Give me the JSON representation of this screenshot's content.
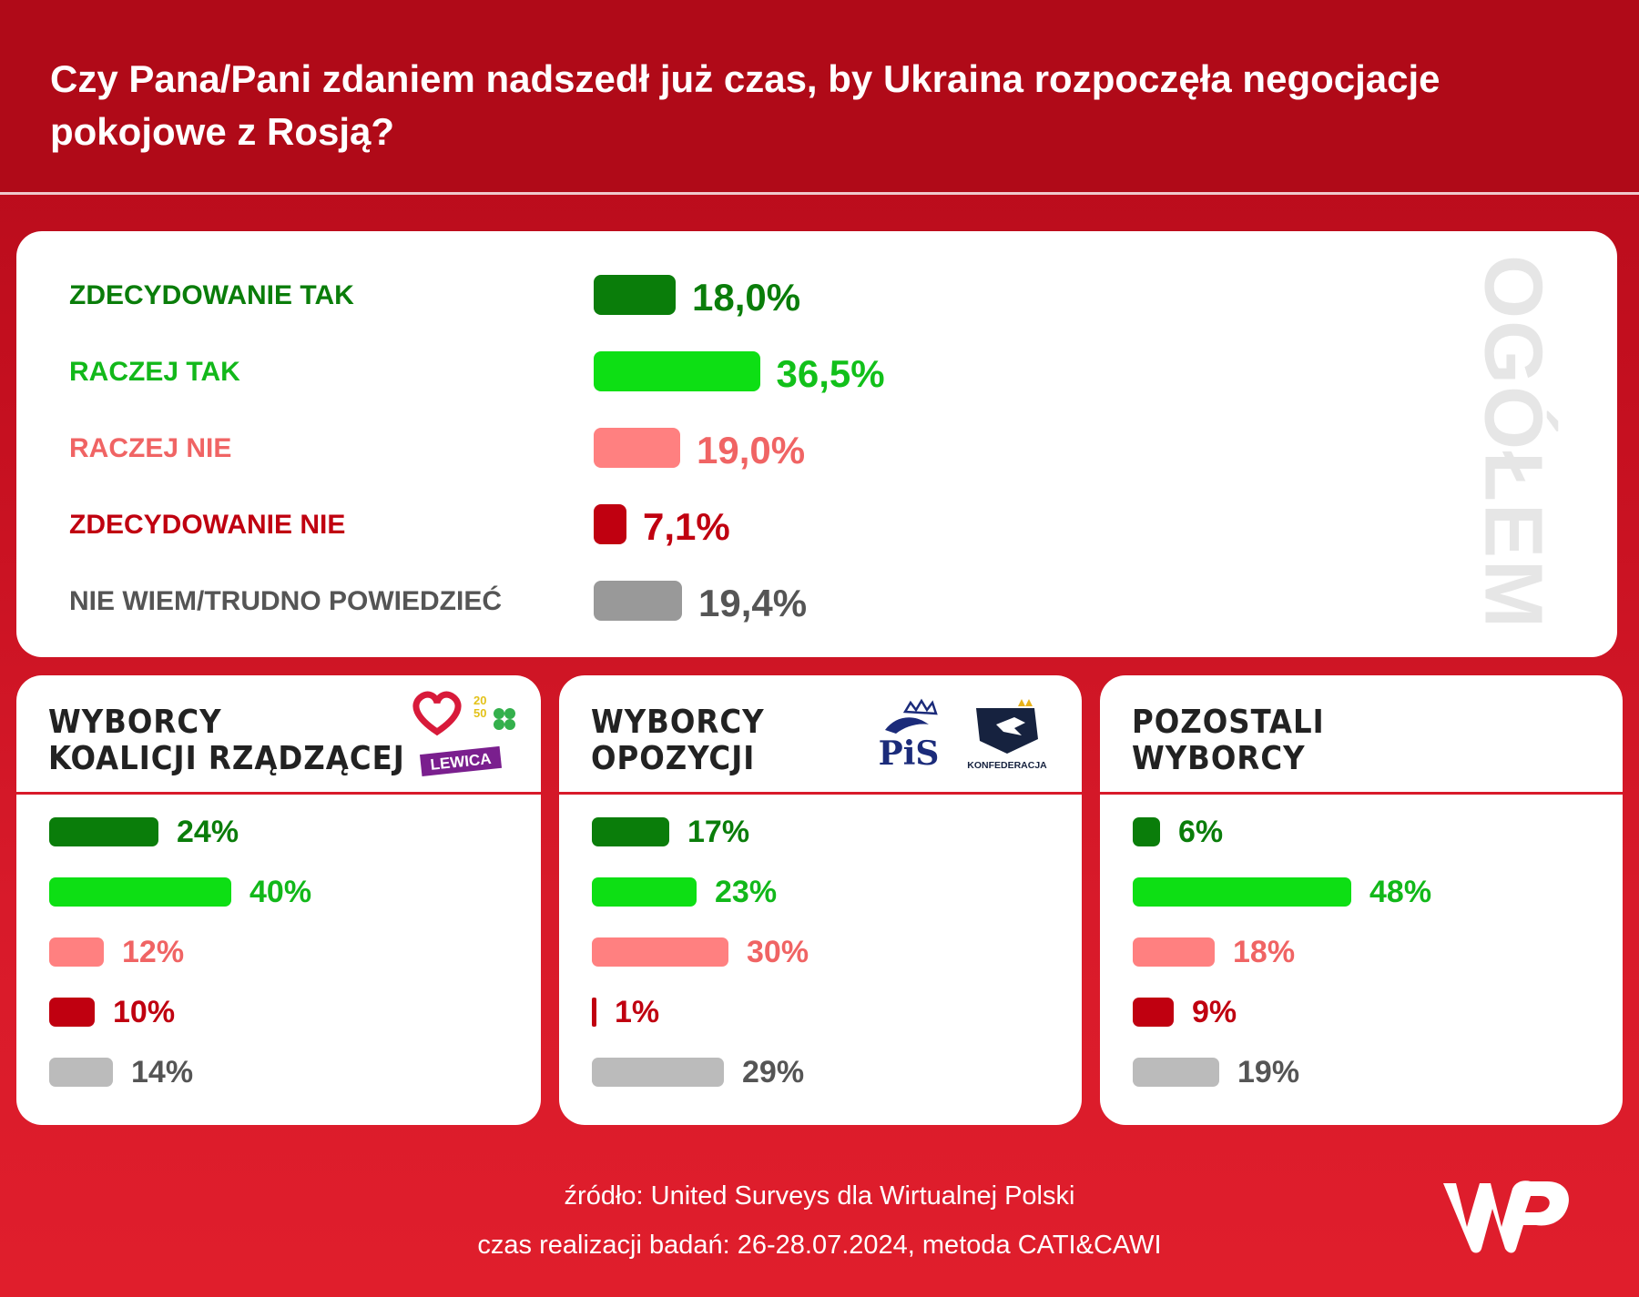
{
  "header": {
    "title": "Czy Pana/Pani zdaniem nadszedł już czas, by Ukraina rozpoczęła negocjacje pokojowe z Rosją?"
  },
  "colors": {
    "zdec_tak": "#0a7d0a",
    "raczej_tak": "#0ddf14",
    "raczej_nie": "#ff8080",
    "zdec_nie": "#c00010",
    "nie_wiem": "#999999",
    "nie_wiem_sub": "#bbbbbb"
  },
  "overall": {
    "side_label": "OGÓŁEM",
    "rows": [
      {
        "label": "ZDECYDOWANIE TAK",
        "value": 18.0,
        "value_text": "18,0%",
        "color": "#0a7d0a"
      },
      {
        "label": "RACZEJ TAK",
        "value": 36.5,
        "value_text": "36,5%",
        "color": "#0ddf14"
      },
      {
        "label": "RACZEJ NIE",
        "value": 19.0,
        "value_text": "19,0%",
        "color": "#ff8080"
      },
      {
        "label": "ZDECYDOWANIE NIE",
        "value": 7.1,
        "value_text": "7,1%",
        "color": "#c00010"
      },
      {
        "label": "NIE WIEM/TRUDNO POWIEDZIEĆ",
        "value": 19.4,
        "value_text": "19,4%",
        "color": "#999999"
      }
    ]
  },
  "groups": [
    {
      "title_line1": "WYBORCY",
      "title_line2": "KOALICJI RZĄDZĄCEJ",
      "logo_text": "LEWICA",
      "values": [
        24,
        40,
        12,
        10,
        14
      ],
      "value_texts": [
        "24%",
        "40%",
        "12%",
        "10%",
        "14%"
      ]
    },
    {
      "title_line1": "WYBORCY",
      "title_line2": "OPOZYCJI",
      "logo_text": "PiS",
      "logo_text_2": "KONFEDERACJA",
      "values": [
        17,
        23,
        30,
        1,
        29
      ],
      "value_texts": [
        "17%",
        "23%",
        "30%",
        "1%",
        "29%"
      ]
    },
    {
      "title_line1": "POZOSTALI",
      "title_line2": "WYBORCY",
      "values": [
        6,
        48,
        18,
        9,
        19
      ],
      "value_texts": [
        "6%",
        "48%",
        "18%",
        "9%",
        "19%"
      ]
    }
  ],
  "chart_data": [
    {
      "type": "bar",
      "title": "Czy Pana/Pani zdaniem nadszedł już czas, by Ukraina rozpoczęła negocjacje pokojowe z Rosją?",
      "subtitle": "OGÓŁEM",
      "categories": [
        "ZDECYDOWANIE TAK",
        "RACZEJ TAK",
        "RACZEJ NIE",
        "ZDECYDOWANIE NIE",
        "NIE WIEM/TRUDNO POWIEDZIEĆ"
      ],
      "values": [
        18.0,
        36.5,
        19.0,
        7.1,
        19.4
      ],
      "orientation": "horizontal"
    },
    {
      "type": "bar",
      "title": "WYBORCY KOALICJI RZĄDZĄCEJ",
      "categories": [
        "ZDECYDOWANIE TAK",
        "RACZEJ TAK",
        "RACZEJ NIE",
        "ZDECYDOWANIE NIE",
        "NIE WIEM/TRUDNO POWIEDZIEĆ"
      ],
      "values": [
        24,
        40,
        12,
        10,
        14
      ],
      "orientation": "horizontal"
    },
    {
      "type": "bar",
      "title": "WYBORCY OPOZYCJI",
      "categories": [
        "ZDECYDOWANIE TAK",
        "RACZEJ TAK",
        "RACZEJ NIE",
        "ZDECYDOWANIE NIE",
        "NIE WIEM/TRUDNO POWIEDZIEĆ"
      ],
      "values": [
        17,
        23,
        30,
        1,
        29
      ],
      "orientation": "horizontal"
    },
    {
      "type": "bar",
      "title": "POZOSTALI WYBORCY",
      "categories": [
        "ZDECYDOWANIE TAK",
        "RACZEJ TAK",
        "RACZEJ NIE",
        "ZDECYDOWANIE NIE",
        "NIE WIEM/TRUDNO POWIEDZIEĆ"
      ],
      "values": [
        6,
        48,
        18,
        9,
        19
      ],
      "orientation": "horizontal"
    }
  ],
  "footer": {
    "source": "źródło: United Surveys dla Wirtualnej Polski",
    "method": "czas realizacji badań: 26-28.07.2024, metoda CATI&CAWI"
  }
}
